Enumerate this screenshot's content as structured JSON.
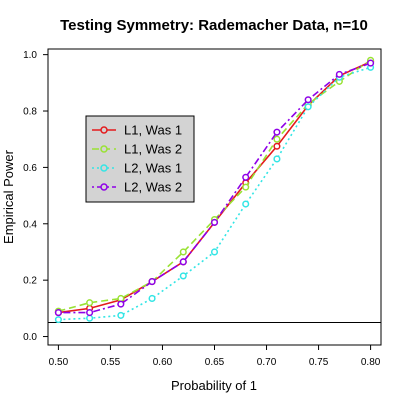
{
  "chart_data": {
    "type": "line",
    "title": "Testing Symmetry: Rademacher Data, n=10",
    "xlabel": "Probability of 1",
    "ylabel": "Empirical Power",
    "xlim": [
      0.49,
      0.81
    ],
    "ylim": [
      -0.03,
      1.02
    ],
    "x_ticks": [
      0.5,
      0.55,
      0.6,
      0.65,
      0.7,
      0.75,
      0.8
    ],
    "x_tick_labels": [
      "0.50",
      "0.55",
      "0.60",
      "0.65",
      "0.70",
      "0.75",
      "0.80"
    ],
    "y_ticks": [
      0.0,
      0.2,
      0.4,
      0.6,
      0.8,
      1.0
    ],
    "y_tick_labels": [
      "0.0",
      "0.2",
      "0.4",
      "0.6",
      "0.8",
      "1.0"
    ],
    "reference_line": 0.05,
    "legend_position": "upper-left",
    "grid": false,
    "x": [
      0.5,
      0.53,
      0.56,
      0.59,
      0.62,
      0.65,
      0.68,
      0.71,
      0.74,
      0.77,
      0.8
    ],
    "series": [
      {
        "name": "L1, Was 1",
        "color": "#e41a1c",
        "dash": "solid",
        "values": [
          0.085,
          0.1,
          0.13,
          0.195,
          0.265,
          0.405,
          0.545,
          0.675,
          0.82,
          0.925,
          0.975
        ]
      },
      {
        "name": "L1, Was 2",
        "color": "#99e233",
        "dash": "dashed",
        "values": [
          0.09,
          0.12,
          0.135,
          0.195,
          0.3,
          0.415,
          0.53,
          0.7,
          0.825,
          0.905,
          0.98
        ]
      },
      {
        "name": "L2, Was 1",
        "color": "#33e5e5",
        "dash": "dotted",
        "values": [
          0.06,
          0.065,
          0.075,
          0.135,
          0.215,
          0.3,
          0.47,
          0.63,
          0.815,
          0.92,
          0.955
        ]
      },
      {
        "name": "L2, Was 2",
        "color": "#8f00e8",
        "dash": "dashdot",
        "values": [
          0.085,
          0.085,
          0.115,
          0.195,
          0.265,
          0.405,
          0.565,
          0.725,
          0.84,
          0.93,
          0.97
        ]
      }
    ]
  }
}
